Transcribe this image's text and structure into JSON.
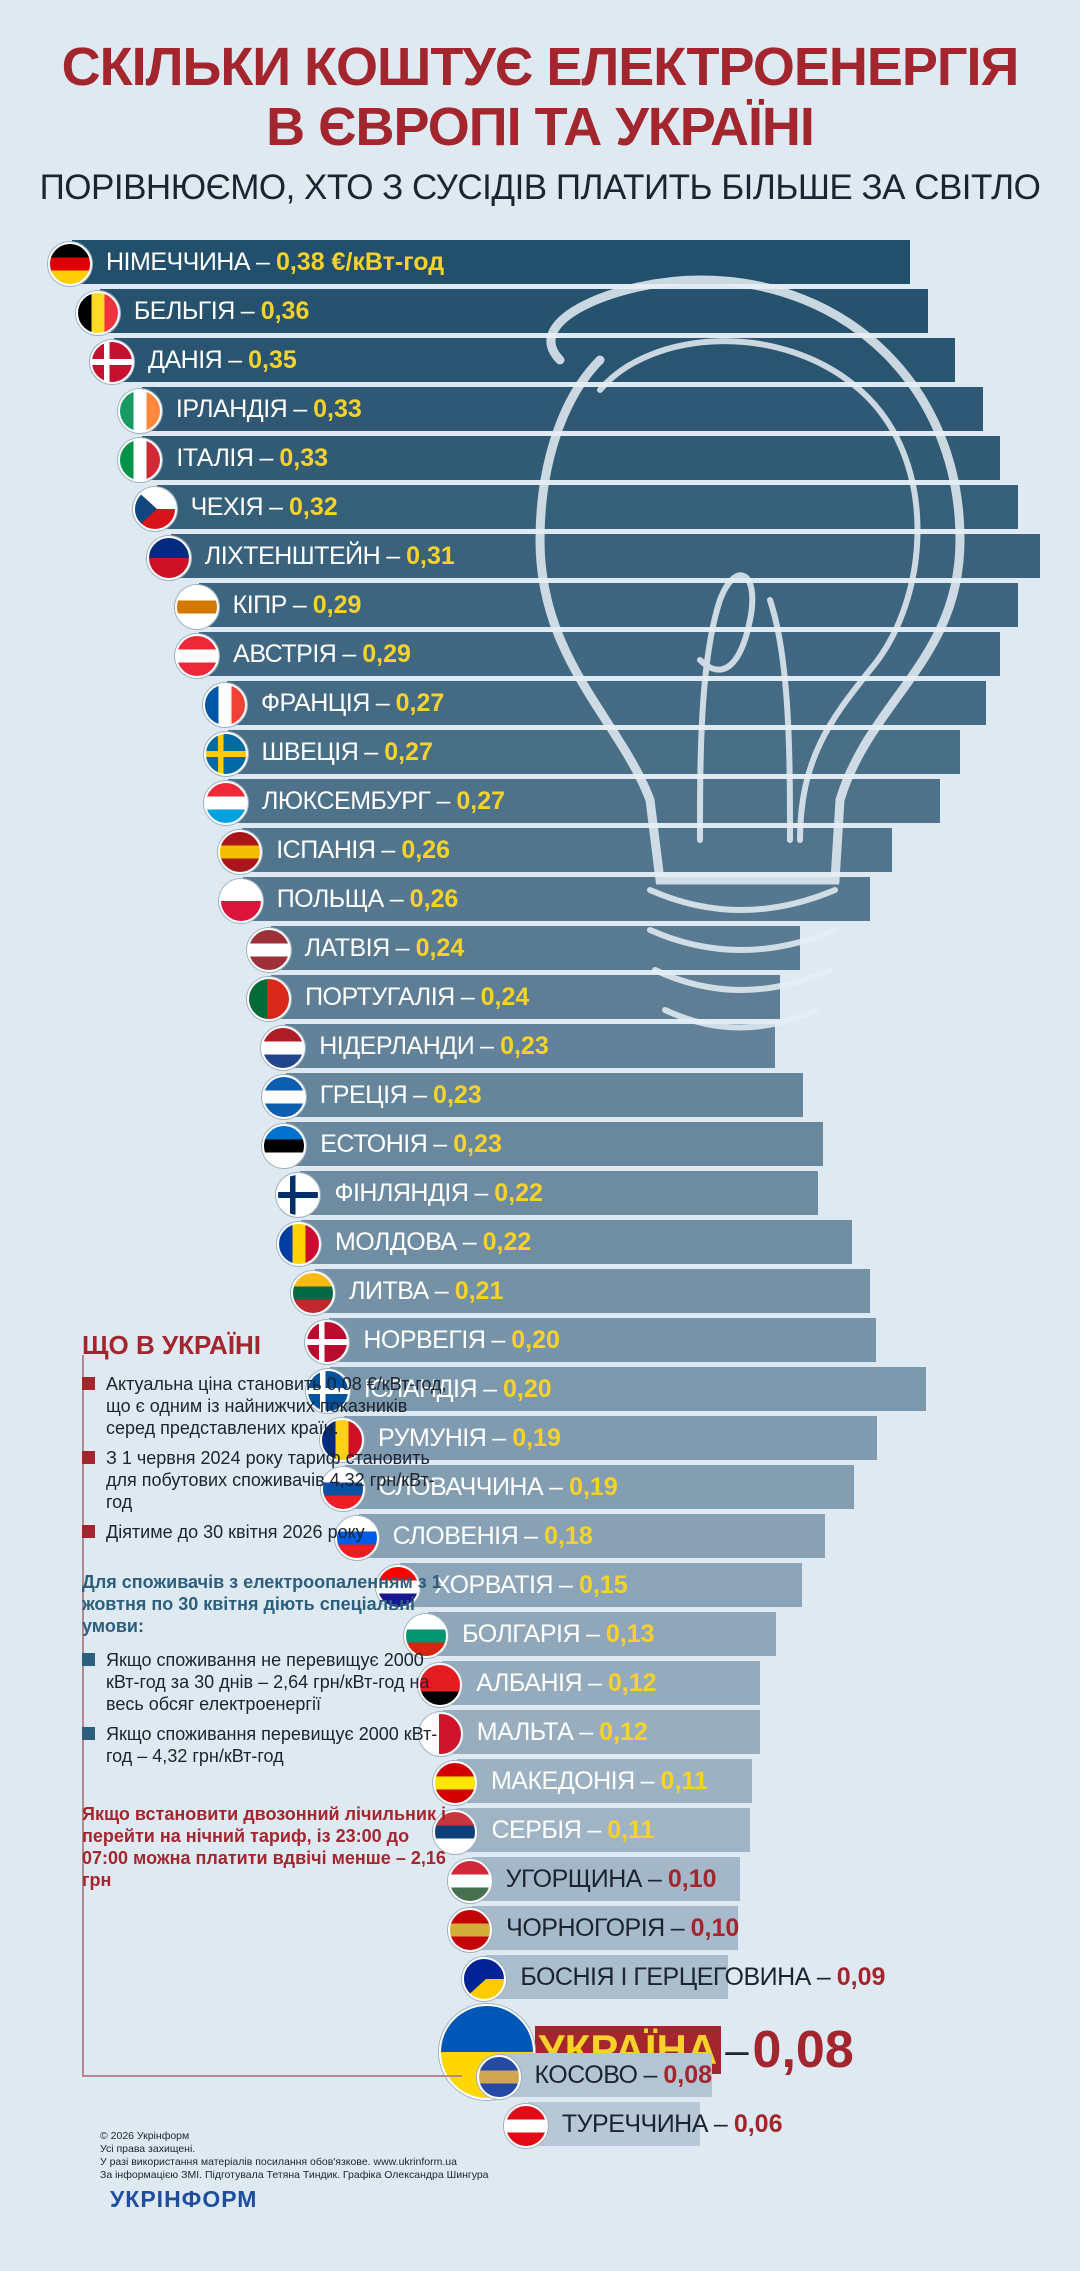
{
  "header": {
    "title_line1": "СКІЛЬКИ КОШТУЄ ЕЛЕКТРОЕНЕРГІЯ",
    "title_line2": "В ЄВРОПІ ТА УКРАЇНІ",
    "subtitle": "ПОРІВНЮЄМО, ХТО З СУСІДІВ ПЛАТИТЬ БІЛЬШЕ ЗА СВІТЛО"
  },
  "chart_data": {
    "type": "bar",
    "orientation": "horizontal",
    "unit": "€/кВт-год",
    "categories": [
      "НІМЕЧЧИНА",
      "БЕЛЬГІЯ",
      "ДАНІЯ",
      "ІРЛАНДІЯ",
      "ІТАЛІЯ",
      "ЧЕХІЯ",
      "ЛІХТЕНШТЕЙН",
      "КІПР",
      "АВСТРІЯ",
      "ФРАНЦІЯ",
      "ШВЕЦІЯ",
      "ЛЮКСЕМБУРГ",
      "ІСПАНІЯ",
      "ПОЛЬЩА",
      "ЛАТВІЯ",
      "ПОРТУГАЛІЯ",
      "НІДЕРЛАНДИ",
      "ГРЕЦІЯ",
      "ЕСТОНІЯ",
      "ФІНЛЯНДІЯ",
      "МОЛДОВА",
      "ЛИТВА",
      "НОРВЕГІЯ",
      "ІСЛАНДІЯ",
      "РУМУНІЯ",
      "СЛОВАЧЧИНА",
      "СЛОВЕНІЯ",
      "ХОРВАТІЯ",
      "БОЛГАРІЯ",
      "АЛБАНІЯ",
      "МАЛЬТА",
      "МАКЕДОНІЯ",
      "СЕРБІЯ",
      "УГОРЩИНА",
      "ЧОРНОГОРІЯ",
      "БОСНІЯ І ГЕРЦЕГОВИНА",
      "УКРАЇНА",
      "КОСОВО",
      "ТУРЕЧЧИНА"
    ],
    "values": [
      0.38,
      0.36,
      0.35,
      0.33,
      0.33,
      0.32,
      0.31,
      0.29,
      0.29,
      0.27,
      0.27,
      0.27,
      0.26,
      0.26,
      0.24,
      0.24,
      0.23,
      0.23,
      0.23,
      0.22,
      0.22,
      0.21,
      0.2,
      0.2,
      0.19,
      0.19,
      0.18,
      0.15,
      0.13,
      0.12,
      0.12,
      0.11,
      0.11,
      0.1,
      0.1,
      0.09,
      0.08,
      0.08,
      0.06
    ],
    "value_labels": [
      "0,38 €/кВт-год",
      "0,36",
      "0,35",
      "0,33",
      "0,33",
      "0,32",
      "0,31",
      "0,29",
      "0,29",
      "0,27",
      "0,27",
      "0,27",
      "0,26",
      "0,26",
      "0,24",
      "0,24",
      "0,23",
      "0,23",
      "0,23",
      "0,22",
      "0,22",
      "0,21",
      "0,20",
      "0,20",
      "0,19",
      "0,19",
      "0,18",
      "0,15",
      "0,13",
      "0,12",
      "0,12",
      "0,11",
      "0,11",
      "0,10",
      "0,10",
      "0,09",
      "0,08",
      "0,08",
      "0,06"
    ],
    "flags": [
      [
        "#000000",
        "#dd0000",
        "#ffce00",
        "h"
      ],
      [
        "#000000",
        "#fdda24",
        "#ef3340",
        "v"
      ],
      [
        "#c8102e",
        "#ffffff",
        "#c8102e",
        "cross"
      ],
      [
        "#169b62",
        "#ffffff",
        "#ff883e",
        "v"
      ],
      [
        "#009246",
        "#ffffff",
        "#ce2b37",
        "v"
      ],
      [
        "#ffffff",
        "#d7141a",
        "#11457e",
        "tri"
      ],
      [
        "#002b7f",
        "#ce1126",
        "#ffd83d",
        "h2"
      ],
      [
        "#ffffff",
        "#d57800",
        "#ffffff",
        "h"
      ],
      [
        "#ed2939",
        "#ffffff",
        "#ed2939",
        "h"
      ],
      [
        "#0055a4",
        "#ffffff",
        "#ef4135",
        "v"
      ],
      [
        "#006aa7",
        "#fecc00",
        "#006aa7",
        "cross"
      ],
      [
        "#ed2939",
        "#ffffff",
        "#00a1de",
        "h"
      ],
      [
        "#aa151b",
        "#f1bf00",
        "#aa151b",
        "h"
      ],
      [
        "#ffffff",
        "#dc143c",
        "#dc143c",
        "h2"
      ],
      [
        "#9e3039",
        "#ffffff",
        "#9e3039",
        "h"
      ],
      [
        "#046a38",
        "#da291c",
        "#da291c",
        "v2"
      ],
      [
        "#ae1c28",
        "#ffffff",
        "#21468b",
        "h"
      ],
      [
        "#0d5eaf",
        "#ffffff",
        "#0d5eaf",
        "h"
      ],
      [
        "#0072ce",
        "#000000",
        "#ffffff",
        "h"
      ],
      [
        "#ffffff",
        "#002f6c",
        "#ffffff",
        "cross"
      ],
      [
        "#003da5",
        "#ffd200",
        "#cc092f",
        "v"
      ],
      [
        "#fdb913",
        "#006a44",
        "#c1272d",
        "h"
      ],
      [
        "#ba0c2f",
        "#ffffff",
        "#00205b",
        "cross"
      ],
      [
        "#02529c",
        "#ffffff",
        "#dc1e35",
        "cross"
      ],
      [
        "#002b7f",
        "#fcd116",
        "#ce1126",
        "v"
      ],
      [
        "#ffffff",
        "#0b4ea2",
        "#ee1c25",
        "h"
      ],
      [
        "#ffffff",
        "#005ce5",
        "#ed1c24",
        "h"
      ],
      [
        "#ff0000",
        "#ffffff",
        "#171796",
        "h"
      ],
      [
        "#ffffff",
        "#00966e",
        "#d62612",
        "h"
      ],
      [
        "#e41e20",
        "#e41e20",
        "#000000",
        "h"
      ],
      [
        "#ffffff",
        "#cf142b",
        "#cf142b",
        "v2"
      ],
      [
        "#d20000",
        "#ffe600",
        "#d20000",
        "h"
      ],
      [
        "#c6363c",
        "#0c4076",
        "#ffffff",
        "h"
      ],
      [
        "#ce2939",
        "#ffffff",
        "#477050",
        "h"
      ],
      [
        "#c40308",
        "#d3ae3b",
        "#c40308",
        "h"
      ],
      [
        "#002395",
        "#fecb00",
        "#002395",
        "tri"
      ],
      [
        "#0057b7",
        "#ffd700",
        "#ffd700",
        "h2"
      ],
      [
        "#244aa5",
        "#d0a650",
        "#244aa5",
        "h"
      ],
      [
        "#e30a17",
        "#ffffff",
        "#e30a17",
        "h"
      ]
    ]
  },
  "ukraine_info": {
    "title": "ЩО В УКРАЇНІ",
    "points": [
      "Актуальна ціна становить 0,08 €/кВт-год, що є одним із найнижчих показників серед представлених країн.",
      "З 1 червня 2024 року тариф становить для побутових споживачів 4,32 грн/кВт-год",
      "Діятиме до 30 квітня 2026 року"
    ],
    "subtitle": "Для споживачів з електроопаленням з 1 жовтня по 30 квітня діють спеціальні умови:",
    "conditions": [
      "Якщо споживання не перевищує 2000 кВт-год за 30 днів – 2,64 грн/кВт-год на весь обсяг електроенергії",
      "Якщо споживання перевищує 2000 кВт-год – 4,32 грн/кВт-год"
    ],
    "note": "Якщо встановити двозонний лічильник і перейти на нічний тариф, із 23:00 до 07:00 можна платити вдвічі менше – 2,16 грн"
  },
  "footer": {
    "line1": "© 2026 Укрінформ",
    "line2": "Усі права захищені.",
    "line3": "У разі використання матеріалів посилання обов'язкове. www.ukrinform.ua",
    "line4": "За інформацією ЗМІ. Підготувала Тетяна Тиндик. Графіка Олександра Шингура",
    "logo": "УКРІНФОРМ"
  },
  "colors": {
    "title": "#a3262e",
    "bar_dark": "#224f6b",
    "bar_light": "#b7c7d6",
    "value_yellow": "#f6d22b",
    "value_red": "#a3262e",
    "background": "#dfe9f2"
  }
}
